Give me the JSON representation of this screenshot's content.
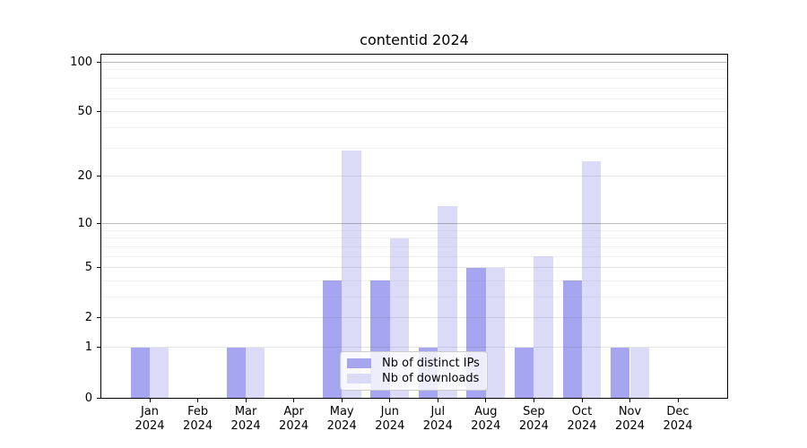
{
  "title": "contentid 2024",
  "chart_data": {
    "type": "bar",
    "title": "contentid 2024",
    "categories": [
      "Jan 2024",
      "Feb 2024",
      "Mar 2024",
      "Apr 2024",
      "May 2024",
      "Jun 2024",
      "Jul 2024",
      "Aug 2024",
      "Sep 2024",
      "Oct 2024",
      "Nov 2024",
      "Dec 2024"
    ],
    "series": [
      {
        "name": "Nb of distinct IPs",
        "color": "#a5a5f0",
        "values": [
          1,
          0,
          1,
          0,
          4,
          4,
          1,
          5,
          1,
          4,
          1,
          0
        ]
      },
      {
        "name": "Nb of downloads",
        "color": "#dbdbf8",
        "values": [
          1,
          0,
          1,
          0,
          29,
          8,
          13,
          5,
          6,
          25,
          1,
          0
        ]
      }
    ],
    "yscale": "log10(1+y)",
    "ylim": [
      0,
      111
    ],
    "y_major_ticks": [
      0,
      1,
      2,
      5,
      10,
      20,
      50,
      100
    ],
    "y_mid_gridlines": [
      1,
      2,
      5,
      20,
      50
    ],
    "y_strong_gridlines": [
      10,
      100
    ],
    "y_minor_gridlines": [
      3,
      4,
      6,
      7,
      8,
      9,
      30,
      40,
      60,
      70,
      80,
      90
    ],
    "grid": true,
    "legend_position": "inside bottom-center",
    "xlabel": "",
    "ylabel": ""
  },
  "colors": {
    "spine": "#000000",
    "grid_major": "#b4b4b4",
    "grid_mid": "#d9d9d9",
    "grid_minor": "#ededed",
    "legend_border": "#cccccc",
    "background": "#ffffff"
  }
}
